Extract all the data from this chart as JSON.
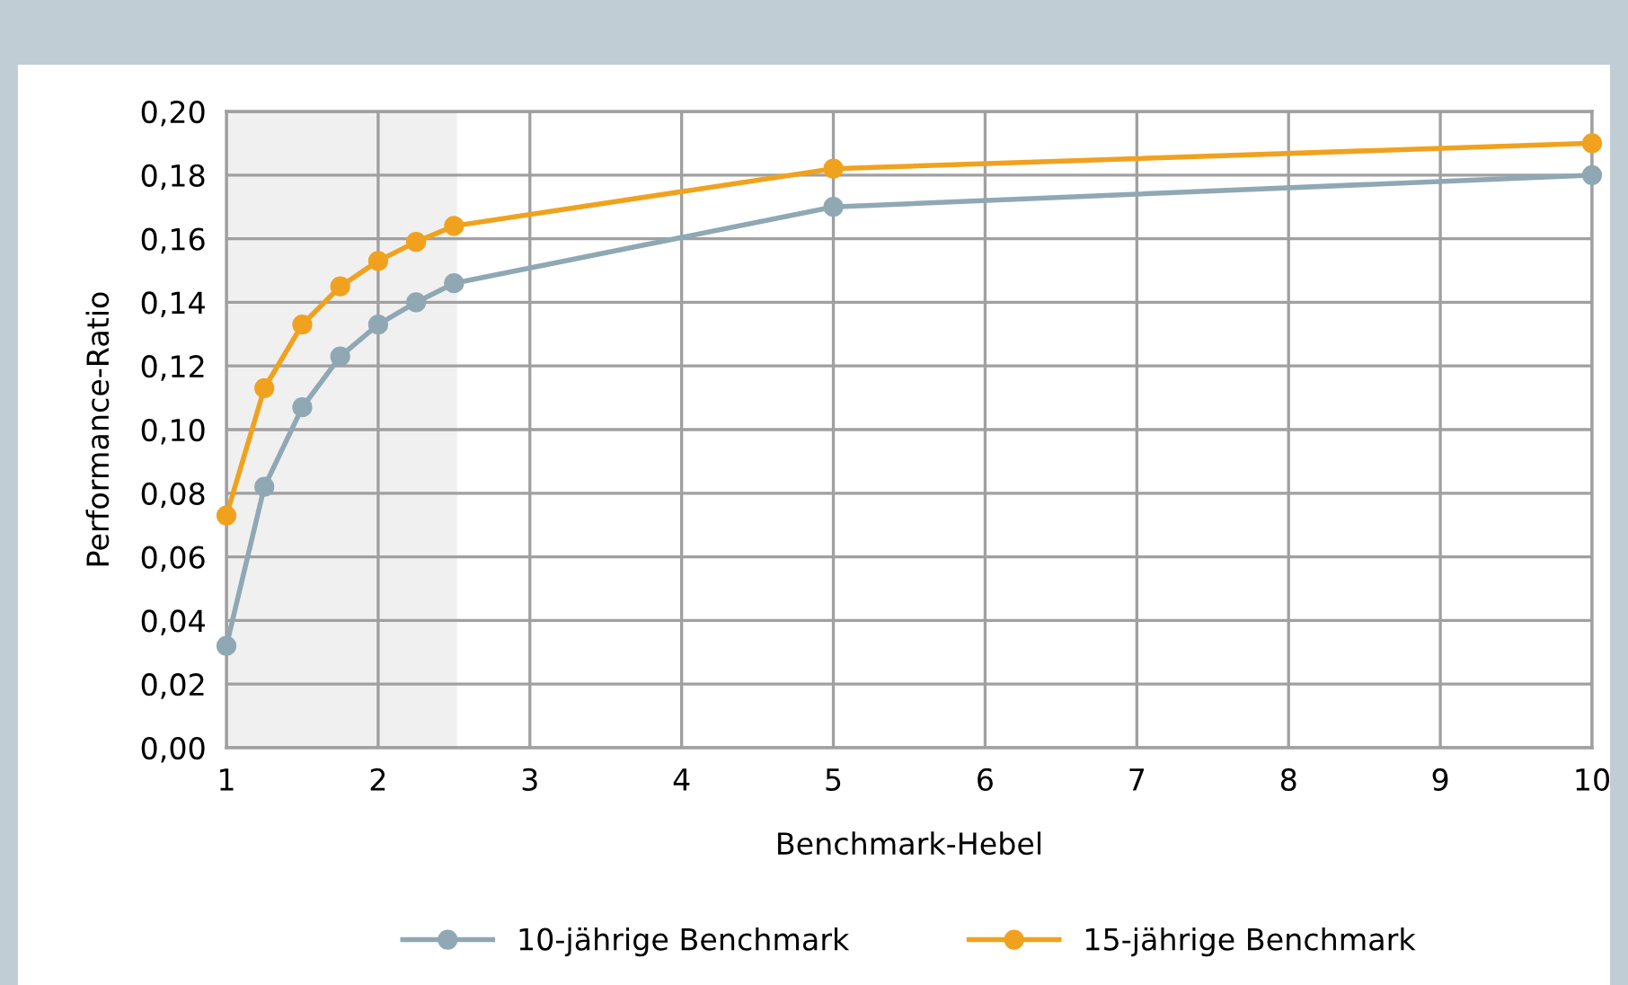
{
  "chart_data": {
    "type": "line",
    "xlabel": "Benchmark-Hebel",
    "ylabel": "Performance-Ratio",
    "x": [
      1,
      1.25,
      1.5,
      1.75,
      2,
      2.25,
      2.5,
      5,
      10
    ],
    "series": [
      {
        "name": "10-jährige Benchmark",
        "color": "#8fa8b4",
        "values": [
          0.032,
          0.082,
          0.107,
          0.123,
          0.133,
          0.14,
          0.146,
          0.17,
          0.18
        ]
      },
      {
        "name": "15-jährige Benchmark",
        "color": "#f0a21e",
        "values": [
          0.073,
          0.113,
          0.133,
          0.145,
          0.153,
          0.159,
          0.164,
          0.182,
          0.19
        ]
      }
    ],
    "xlim": [
      1,
      10
    ],
    "xticks": [
      1,
      2,
      3,
      4,
      5,
      6,
      7,
      8,
      9,
      10
    ],
    "ylim": [
      0,
      0.2
    ],
    "yticks": [
      {
        "value": 0,
        "label": "0,00"
      },
      {
        "value": 0.02,
        "label": "0,02"
      },
      {
        "value": 0.04,
        "label": "0,04"
      },
      {
        "value": 0.06,
        "label": "0,06"
      },
      {
        "value": 0.08,
        "label": "0,08"
      },
      {
        "value": 0.1,
        "label": "0,10"
      },
      {
        "value": 0.12,
        "label": "0,12"
      },
      {
        "value": 0.14,
        "label": "0,14"
      },
      {
        "value": 0.16,
        "label": "0,16"
      },
      {
        "value": 0.18,
        "label": "0,18"
      },
      {
        "value": 0.2,
        "label": "0,20"
      }
    ],
    "bands": [
      {
        "axis": "x",
        "from": 1,
        "to": 2.52,
        "color": "#f0f0f0"
      }
    ],
    "grid": true,
    "legend": "bottom",
    "marker": "circle",
    "line_style": "solid"
  }
}
